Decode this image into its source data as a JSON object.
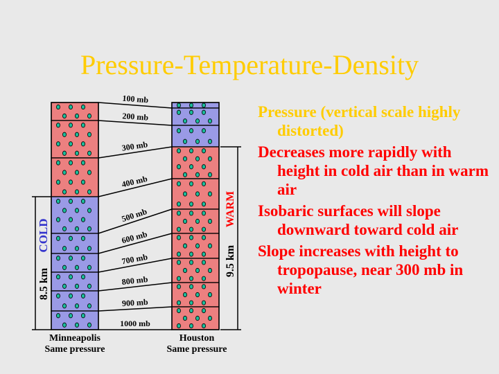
{
  "title": "Pressure-Temperature-Density",
  "colors": {
    "background": "#e9e9e9",
    "cold_air": "#9a9ae6",
    "warm_air": "#ec8080",
    "dot_fill": "#1bbc9a",
    "title": "#ffcc00",
    "red_text": "#ff0000",
    "cold_label": "#3333cc",
    "warm_label": "#ff0000"
  },
  "levels": [
    "100 mb",
    "200 mb",
    "300 mb",
    "400 mb",
    "500 mb",
    "600 mb",
    "700 mb",
    "800 mb",
    "900 mb",
    "1000 mb"
  ],
  "columns": {
    "cold": {
      "station": "Minneapolis",
      "note": "Same pressure",
      "air_label": "COLD",
      "height_label": "8.5 km"
    },
    "warm": {
      "station": "Houston",
      "note": "Same pressure",
      "air_label": "WARM",
      "height_label": "9.5 km"
    }
  },
  "bullets": [
    {
      "text": "Pressure (vertical scale highly distorted)",
      "color": "yellow"
    },
    {
      "text": "Decreases more rapidly with height in cold air than in warm air",
      "color": "red"
    },
    {
      "text": "Isobaric surfaces will slope downward toward cold air",
      "color": "red"
    },
    {
      "text": "Slope increases with height to tropopause, near 300 mb in winter",
      "color": "red"
    }
  ]
}
